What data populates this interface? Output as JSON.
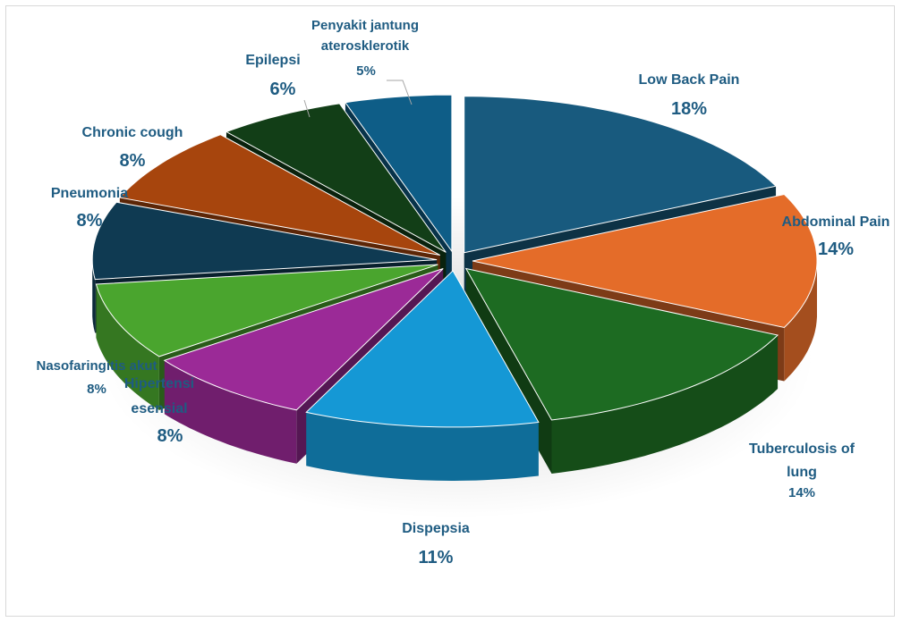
{
  "chart_data": {
    "type": "pie",
    "title": "",
    "legend": "none",
    "slices": [
      {
        "name": "Low Back Pain",
        "value": 18,
        "label": "18%",
        "color": "#185a7e"
      },
      {
        "name": "Abdominal Pain",
        "value": 14,
        "label": "14%",
        "color": "#e46c29"
      },
      {
        "name": "Tuberculosis of lung",
        "value": 14,
        "label": "14%",
        "color": "#1d6b22"
      },
      {
        "name": "Dispepsia",
        "value": 11,
        "label": "11%",
        "color": "#1598d5"
      },
      {
        "name": "Hipertensi esensial",
        "value": 8,
        "label": "8%",
        "color": "#9b2a97"
      },
      {
        "name": "Nasofaringitis akut",
        "value": 8,
        "label": "8%",
        "color": "#4aa52e"
      },
      {
        "name": "Pneumonia",
        "value": 8,
        "label": "8%",
        "color": "#0f3a52"
      },
      {
        "name": "Chronic cough",
        "value": 8,
        "label": "8%",
        "color": "#a7450d"
      },
      {
        "name": "Epilepsi",
        "value": 6,
        "label": "6%",
        "color": "#123e17"
      },
      {
        "name": "Penyakit jantung aterosklerotik",
        "value": 5,
        "label": "5%",
        "color": "#0e5d87"
      }
    ]
  }
}
